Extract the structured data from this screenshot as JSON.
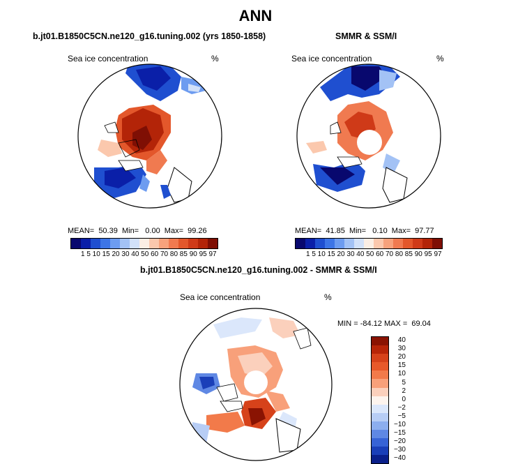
{
  "figure": {
    "title": "ANN"
  },
  "panels": [
    {
      "subtitle": "b.jt01.B1850C5CN.ne120_g16.tuning.002 (yrs 1850-1858)",
      "label": "Sea ice concentration",
      "unit": "%",
      "stats": "MEAN=  50.39  Min=   0.00  Max=  99.26",
      "ticks": "1  5  10 15 20 30 40 50 60 70 80 85 90 95 97"
    },
    {
      "subtitle": "SMMR & SSM/I",
      "label": "Sea ice concentration",
      "unit": "%",
      "stats": "MEAN=  41.85  Min=   0.10  Max=  97.77",
      "ticks": "1  5  10 15 20 30 40 50 60 70 80 85 90 95 97"
    },
    {
      "subtitle": "b.jt01.B1850C5CN.ne120_g16.tuning.002 - SMMR & SSM/I",
      "label": "Sea ice concentration",
      "unit": "%",
      "stats": "MIN = -84.12 MAX =  69.04",
      "diff_levels": [
        "40",
        "30",
        "20",
        "15",
        "10",
        "5",
        "2",
        "0",
        "−2",
        "−5",
        "−10",
        "−15",
        "−20",
        "−30",
        "−40"
      ]
    }
  ],
  "colors": {
    "abs_scale": [
      "#08086e",
      "#0a1fa8",
      "#1f4fd0",
      "#3d75e6",
      "#6d9cf0",
      "#a3c2f5",
      "#d2e1f9",
      "#fbeee4",
      "#fbc8ad",
      "#f7a27c",
      "#f07a50",
      "#e3572b",
      "#cf3a18",
      "#b32408",
      "#7f0f04"
    ],
    "diff_scale": [
      "#8a1302",
      "#b72508",
      "#d6421a",
      "#e8592a",
      "#f27a4a",
      "#f8a07a",
      "#fbd0bc",
      "#fdf4ee",
      "#dbe7fb",
      "#b7cdf5",
      "#8caeee",
      "#5f88e4",
      "#3763d6",
      "#1a3fb8",
      "#0a1f8a"
    ]
  }
}
